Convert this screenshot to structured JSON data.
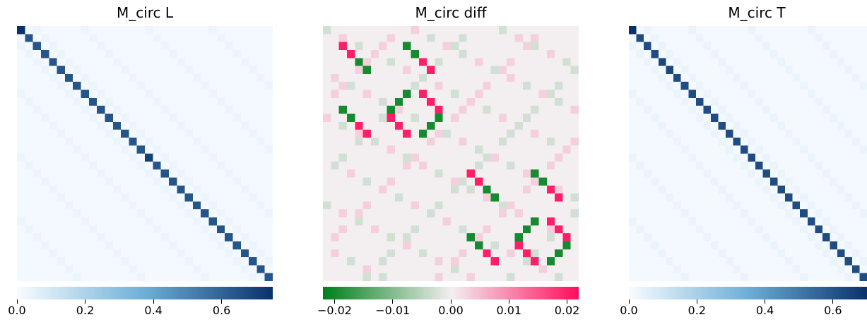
{
  "chart_data": [
    {
      "type": "heatmap",
      "title": "M_circ L",
      "size": 32,
      "colormap": "Blues",
      "colors": {
        "low": "#f7fbff",
        "mid": "#6baed6",
        "high": "#08306b"
      },
      "vmin": 0.0,
      "vmax": 0.75,
      "diagonal": [
        0.78,
        0.64,
        0.64,
        0.64,
        0.64,
        0.64,
        0.64,
        0.64,
        0.64,
        0.64,
        0.64,
        0.64,
        0.64,
        0.64,
        0.64,
        0.64,
        0.7,
        0.64,
        0.64,
        0.64,
        0.64,
        0.64,
        0.64,
        0.64,
        0.64,
        0.64,
        0.64,
        0.64,
        0.64,
        0.64,
        0.64,
        0.64
      ],
      "background": 0.01,
      "off_diagonal_faint": 0.03,
      "colorbar_ticks": [
        "0.0",
        "0.2",
        "0.4",
        "0.6"
      ],
      "colorbar_tick_values": [
        0.0,
        0.2,
        0.4,
        0.6
      ]
    },
    {
      "type": "heatmap",
      "title": "M_circ diff",
      "size": 32,
      "colormap": "PiYG_r",
      "colors": {
        "neg": "#00801a",
        "zero": "#f3eff1",
        "pos": "#ff0a5a"
      },
      "vmin": -0.022,
      "vmax": 0.022,
      "cells": [
        {
          "row": 2,
          "col": 2,
          "value": 0.02
        },
        {
          "row": 3,
          "col": 3,
          "value": 0.02
        },
        {
          "row": 4,
          "col": 4,
          "value": -0.02
        },
        {
          "row": 5,
          "col": 5,
          "value": -0.02
        },
        {
          "row": 2,
          "col": 10,
          "value": -0.02
        },
        {
          "row": 3,
          "col": 11,
          "value": -0.02
        },
        {
          "row": 4,
          "col": 12,
          "value": 0.02
        },
        {
          "row": 5,
          "col": 13,
          "value": 0.02
        },
        {
          "row": 8,
          "col": 10,
          "value": -0.02
        },
        {
          "row": 9,
          "col": 9,
          "value": -0.02
        },
        {
          "row": 10,
          "col": 8,
          "value": -0.02
        },
        {
          "row": 8,
          "col": 12,
          "value": 0.02
        },
        {
          "row": 9,
          "col": 13,
          "value": 0.02
        },
        {
          "row": 10,
          "col": 14,
          "value": 0.02
        },
        {
          "row": 11,
          "col": 8,
          "value": 0.02
        },
        {
          "row": 12,
          "col": 9,
          "value": 0.02
        },
        {
          "row": 13,
          "col": 10,
          "value": 0.02
        },
        {
          "row": 11,
          "col": 14,
          "value": -0.02
        },
        {
          "row": 12,
          "col": 13,
          "value": -0.02
        },
        {
          "row": 13,
          "col": 12,
          "value": -0.02
        },
        {
          "row": 10,
          "col": 2,
          "value": -0.02
        },
        {
          "row": 11,
          "col": 3,
          "value": -0.02
        },
        {
          "row": 12,
          "col": 4,
          "value": 0.02
        },
        {
          "row": 13,
          "col": 5,
          "value": 0.02
        },
        {
          "row": 18,
          "col": 18,
          "value": 0.02
        },
        {
          "row": 19,
          "col": 19,
          "value": 0.02
        },
        {
          "row": 20,
          "col": 20,
          "value": -0.02
        },
        {
          "row": 21,
          "col": 21,
          "value": -0.02
        },
        {
          "row": 18,
          "col": 26,
          "value": -0.02
        },
        {
          "row": 19,
          "col": 27,
          "value": -0.02
        },
        {
          "row": 20,
          "col": 28,
          "value": 0.02
        },
        {
          "row": 21,
          "col": 29,
          "value": 0.02
        },
        {
          "row": 24,
          "col": 26,
          "value": -0.02
        },
        {
          "row": 25,
          "col": 25,
          "value": -0.02
        },
        {
          "row": 26,
          "col": 24,
          "value": -0.02
        },
        {
          "row": 24,
          "col": 28,
          "value": 0.02
        },
        {
          "row": 25,
          "col": 29,
          "value": 0.02
        },
        {
          "row": 26,
          "col": 30,
          "value": 0.02
        },
        {
          "row": 27,
          "col": 24,
          "value": 0.02
        },
        {
          "row": 28,
          "col": 25,
          "value": 0.02
        },
        {
          "row": 29,
          "col": 26,
          "value": 0.02
        },
        {
          "row": 27,
          "col": 30,
          "value": -0.02
        },
        {
          "row": 28,
          "col": 29,
          "value": -0.02
        },
        {
          "row": 29,
          "col": 28,
          "value": -0.02
        },
        {
          "row": 26,
          "col": 18,
          "value": -0.02
        },
        {
          "row": 27,
          "col": 19,
          "value": -0.02
        },
        {
          "row": 28,
          "col": 20,
          "value": 0.02
        },
        {
          "row": 29,
          "col": 21,
          "value": 0.02
        }
      ],
      "faint_magnitude": 0.003,
      "colorbar_ticks": [
        "−0.02",
        "−0.01",
        "0.00",
        "0.01",
        "0.02"
      ],
      "colorbar_tick_values": [
        -0.02,
        -0.01,
        0.0,
        0.01,
        0.02
      ]
    },
    {
      "type": "heatmap",
      "title": "M_circ T",
      "size": 32,
      "colormap": "Blues",
      "colors": {
        "low": "#f7fbff",
        "mid": "#6baed6",
        "high": "#08306b"
      },
      "vmin": 0.0,
      "vmax": 0.7,
      "diagonal": [
        0.7,
        0.62,
        0.62,
        0.62,
        0.64,
        0.64,
        0.62,
        0.62,
        0.62,
        0.62,
        0.62,
        0.62,
        0.62,
        0.62,
        0.62,
        0.62,
        0.62,
        0.62,
        0.62,
        0.62,
        0.62,
        0.62,
        0.62,
        0.62,
        0.62,
        0.62,
        0.62,
        0.62,
        0.62,
        0.62,
        0.62,
        0.62
      ],
      "background": 0.01,
      "off_diagonal_faint": 0.03,
      "colorbar_ticks": [
        "0.0",
        "0.2",
        "0.4",
        "0.6"
      ],
      "colorbar_tick_values": [
        0.0,
        0.2,
        0.4,
        0.6
      ]
    }
  ]
}
